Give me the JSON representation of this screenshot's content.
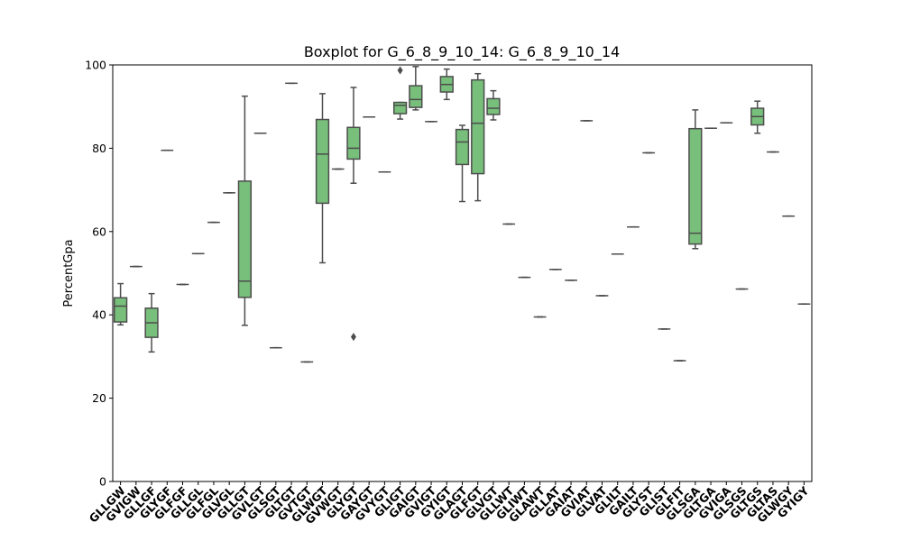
{
  "chart_data": {
    "type": "box",
    "title": "Boxplot for G_6_8_9_10_14: G_6_8_9_10_14",
    "xlabel": "",
    "ylabel": "PercentGpa",
    "ylim": [
      0,
      100
    ],
    "yticks": [
      0,
      20,
      40,
      60,
      80,
      100
    ],
    "grid": false,
    "legend": "none",
    "box_color": "#77bf7a",
    "line_color": "#4d4d4d",
    "categories": [
      "GLLGW",
      "GVIGW",
      "GLLGF",
      "GLYGF",
      "GLFGF",
      "GLLGL",
      "GLFGL",
      "GLVGL",
      "GLLGT",
      "GVLGT",
      "GLSGT",
      "GLTGT",
      "GVTGT",
      "GLWGT",
      "GVWGT",
      "GLYGT",
      "GAYGT",
      "GVYGT",
      "GLIGT",
      "GAIGT",
      "GVIGT",
      "GYIGT",
      "GLAGT",
      "GLFGT",
      "GLVGT",
      "GLLWT",
      "GLIWT",
      "GLAWT",
      "GLLAT",
      "GAIAT",
      "GVIAT",
      "GLVAT",
      "GLILT",
      "GAILT",
      "GLYST",
      "GLIST",
      "GLFIT",
      "GLSGA",
      "GLTGA",
      "GVIGA",
      "GLSGS",
      "GLTGS",
      "GLTAS",
      "GLWGY",
      "GYIGY"
    ],
    "boxes": [
      {
        "label": "GLLGW",
        "whislo": 37.6,
        "q1": 38.3,
        "med": 42.1,
        "q3": 44.1,
        "whishi": 47.5,
        "fliers": []
      },
      {
        "label": "GVIGW",
        "whislo": 51.6,
        "q1": 51.6,
        "med": 51.6,
        "q3": 51.6,
        "whishi": 51.6,
        "fliers": []
      },
      {
        "label": "GLLGF",
        "whislo": 31.1,
        "q1": 34.6,
        "med": 38.1,
        "q3": 41.6,
        "whishi": 45.1,
        "fliers": []
      },
      {
        "label": "GLYGF",
        "whislo": 79.5,
        "q1": 79.5,
        "med": 79.5,
        "q3": 79.5,
        "whishi": 79.5,
        "fliers": []
      },
      {
        "label": "GLFGF",
        "whislo": 47.3,
        "q1": 47.3,
        "med": 47.3,
        "q3": 47.3,
        "whishi": 47.3,
        "fliers": []
      },
      {
        "label": "GLLGL",
        "whislo": 54.7,
        "q1": 54.7,
        "med": 54.7,
        "q3": 54.7,
        "whishi": 54.7,
        "fliers": []
      },
      {
        "label": "GLFGL",
        "whislo": 62.2,
        "q1": 62.2,
        "med": 62.2,
        "q3": 62.2,
        "whishi": 62.2,
        "fliers": []
      },
      {
        "label": "GLVGL",
        "whislo": 69.3,
        "q1": 69.3,
        "med": 69.3,
        "q3": 69.3,
        "whishi": 69.3,
        "fliers": []
      },
      {
        "label": "GLLGT",
        "whislo": 37.5,
        "q1": 44.2,
        "med": 48.1,
        "q3": 72.1,
        "whishi": 92.5,
        "fliers": []
      },
      {
        "label": "GVLGT",
        "whislo": 83.6,
        "q1": 83.6,
        "med": 83.6,
        "q3": 83.6,
        "whishi": 83.6,
        "fliers": []
      },
      {
        "label": "GLSGT",
        "whislo": 32.1,
        "q1": 32.1,
        "med": 32.1,
        "q3": 32.1,
        "whishi": 32.1,
        "fliers": []
      },
      {
        "label": "GLTGT",
        "whislo": 95.6,
        "q1": 95.6,
        "med": 95.6,
        "q3": 95.6,
        "whishi": 95.6,
        "fliers": []
      },
      {
        "label": "GVTGT",
        "whislo": 28.7,
        "q1": 28.7,
        "med": 28.7,
        "q3": 28.7,
        "whishi": 28.7,
        "fliers": []
      },
      {
        "label": "GLWGT",
        "whislo": 52.5,
        "q1": 66.8,
        "med": 78.6,
        "q3": 86.9,
        "whishi": 93.1,
        "fliers": []
      },
      {
        "label": "GVWGT",
        "whislo": 75.0,
        "q1": 75.0,
        "med": 75.0,
        "q3": 75.0,
        "whishi": 75.0,
        "fliers": []
      },
      {
        "label": "GLYGT",
        "whislo": 71.6,
        "q1": 77.4,
        "med": 80.0,
        "q3": 85.0,
        "whishi": 94.6,
        "fliers": [
          34.7
        ]
      },
      {
        "label": "GAYGT",
        "whislo": 87.5,
        "q1": 87.5,
        "med": 87.5,
        "q3": 87.5,
        "whishi": 87.5,
        "fliers": []
      },
      {
        "label": "GVYGT",
        "whislo": 74.3,
        "q1": 74.3,
        "med": 74.3,
        "q3": 74.3,
        "whishi": 74.3,
        "fliers": []
      },
      {
        "label": "GLIGT",
        "whislo": 87.0,
        "q1": 88.3,
        "med": 90.3,
        "q3": 91.0,
        "whishi": 91.0,
        "fliers": [
          98.7
        ]
      },
      {
        "label": "GAIGT",
        "whislo": 89.2,
        "q1": 89.8,
        "med": 91.7,
        "q3": 95.0,
        "whishi": 99.6,
        "fliers": []
      },
      {
        "label": "GVIGT",
        "whislo": 86.4,
        "q1": 86.4,
        "med": 86.4,
        "q3": 86.4,
        "whishi": 86.4,
        "fliers": []
      },
      {
        "label": "GYIGT",
        "whislo": 91.7,
        "q1": 93.5,
        "med": 95.3,
        "q3": 97.2,
        "whishi": 99.0,
        "fliers": []
      },
      {
        "label": "GLAGT",
        "whislo": 67.2,
        "q1": 76.1,
        "med": 81.5,
        "q3": 84.5,
        "whishi": 85.5,
        "fliers": []
      },
      {
        "label": "GLFGT",
        "whislo": 67.4,
        "q1": 73.9,
        "med": 86.0,
        "q3": 96.4,
        "whishi": 97.9,
        "fliers": []
      },
      {
        "label": "GLVGT",
        "whislo": 86.8,
        "q1": 88.1,
        "med": 89.6,
        "q3": 91.9,
        "whishi": 93.8,
        "fliers": []
      },
      {
        "label": "GLLWT",
        "whislo": 61.8,
        "q1": 61.8,
        "med": 61.8,
        "q3": 61.8,
        "whishi": 61.8,
        "fliers": []
      },
      {
        "label": "GLIWT",
        "whislo": 49.0,
        "q1": 49.0,
        "med": 49.0,
        "q3": 49.0,
        "whishi": 49.0,
        "fliers": []
      },
      {
        "label": "GLAWT",
        "whislo": 39.5,
        "q1": 39.5,
        "med": 39.5,
        "q3": 39.5,
        "whishi": 39.5,
        "fliers": []
      },
      {
        "label": "GLLAT",
        "whislo": 50.9,
        "q1": 50.9,
        "med": 50.9,
        "q3": 50.9,
        "whishi": 50.9,
        "fliers": []
      },
      {
        "label": "GAIAT",
        "whislo": 48.3,
        "q1": 48.3,
        "med": 48.3,
        "q3": 48.3,
        "whishi": 48.3,
        "fliers": []
      },
      {
        "label": "GVIAT",
        "whislo": 86.6,
        "q1": 86.6,
        "med": 86.6,
        "q3": 86.6,
        "whishi": 86.6,
        "fliers": []
      },
      {
        "label": "GLVAT",
        "whislo": 44.6,
        "q1": 44.6,
        "med": 44.6,
        "q3": 44.6,
        "whishi": 44.6,
        "fliers": []
      },
      {
        "label": "GLILT",
        "whislo": 54.6,
        "q1": 54.6,
        "med": 54.6,
        "q3": 54.6,
        "whishi": 54.6,
        "fliers": []
      },
      {
        "label": "GAILT",
        "whislo": 61.1,
        "q1": 61.1,
        "med": 61.1,
        "q3": 61.1,
        "whishi": 61.1,
        "fliers": []
      },
      {
        "label": "GLYST",
        "whislo": 78.9,
        "q1": 78.9,
        "med": 78.9,
        "q3": 78.9,
        "whishi": 78.9,
        "fliers": []
      },
      {
        "label": "GLIST",
        "whislo": 36.6,
        "q1": 36.6,
        "med": 36.6,
        "q3": 36.6,
        "whishi": 36.6,
        "fliers": []
      },
      {
        "label": "GLFIT",
        "whislo": 29.0,
        "q1": 29.0,
        "med": 29.0,
        "q3": 29.0,
        "whishi": 29.0,
        "fliers": []
      },
      {
        "label": "GLSGA",
        "whislo": 55.9,
        "q1": 57.0,
        "med": 59.6,
        "q3": 84.7,
        "whishi": 89.2,
        "fliers": []
      },
      {
        "label": "GLTGA",
        "whislo": 84.8,
        "q1": 84.8,
        "med": 84.8,
        "q3": 84.8,
        "whishi": 84.8,
        "fliers": []
      },
      {
        "label": "GVIGA",
        "whislo": 86.1,
        "q1": 86.1,
        "med": 86.1,
        "q3": 86.1,
        "whishi": 86.1,
        "fliers": []
      },
      {
        "label": "GLSGS",
        "whislo": 46.2,
        "q1": 46.2,
        "med": 46.2,
        "q3": 46.2,
        "whishi": 46.2,
        "fliers": []
      },
      {
        "label": "GLTGS",
        "whislo": 83.6,
        "q1": 85.6,
        "med": 87.6,
        "q3": 89.6,
        "whishi": 91.3,
        "fliers": []
      },
      {
        "label": "GLTAS",
        "whislo": 79.1,
        "q1": 79.1,
        "med": 79.1,
        "q3": 79.1,
        "whishi": 79.1,
        "fliers": []
      },
      {
        "label": "GLWGY",
        "whislo": 63.7,
        "q1": 63.7,
        "med": 63.7,
        "q3": 63.7,
        "whishi": 63.7,
        "fliers": []
      },
      {
        "label": "GYIGY",
        "whislo": 42.6,
        "q1": 42.6,
        "med": 42.6,
        "q3": 42.6,
        "whishi": 42.6,
        "fliers": []
      }
    ]
  }
}
